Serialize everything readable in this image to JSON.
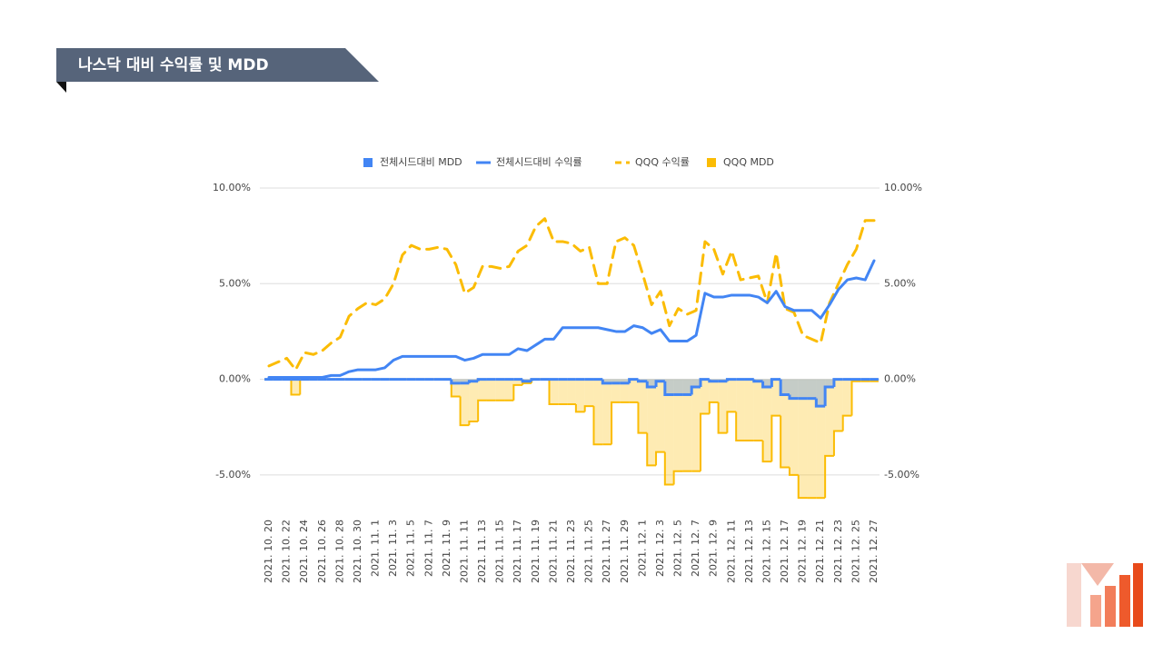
{
  "header": {
    "title": "나스닥 대비 수익률 및 MDD"
  },
  "chart_data": {
    "type": "line",
    "categories": [
      "2021. 10. 20",
      null,
      "2021. 10. 22",
      null,
      "2021. 10. 24",
      null,
      "2021. 10. 26",
      null,
      "2021. 10. 28",
      null,
      "2021. 10. 30",
      null,
      "2021. 11. 1",
      null,
      "2021. 11. 3",
      null,
      "2021. 11. 5",
      null,
      "2021. 11. 7",
      null,
      "2021. 11. 9",
      null,
      "2021. 11. 11",
      null,
      "2021. 11. 13",
      null,
      "2021. 11. 15",
      null,
      "2021. 11. 17",
      null,
      "2021. 11. 19",
      null,
      "2021. 11. 21",
      null,
      "2021. 11. 23",
      null,
      "2021. 11. 25",
      null,
      "2021. 11. 27",
      null,
      "2021. 11. 29",
      null,
      "2021. 12. 1",
      null,
      "2021. 12. 3",
      null,
      "2021. 12. 5",
      null,
      "2021. 12. 7",
      null,
      "2021. 12. 9",
      null,
      "2021. 12. 11",
      null,
      "2021. 12. 13",
      null,
      "2021. 12. 15",
      null,
      "2021. 12. 17",
      null,
      "2021. 12. 19",
      null,
      "2021. 12. 21",
      null,
      "2021. 12. 23",
      null,
      "2021. 12. 25",
      null,
      "2021. 12. 27"
    ],
    "series": [
      {
        "name": "전체시드대비 MDD",
        "color": "#4285f4",
        "type": "area",
        "values": [
          0,
          0,
          0,
          0,
          0,
          0,
          0,
          0,
          0,
          0,
          0,
          0,
          0,
          0,
          0,
          0,
          0,
          0,
          0,
          0,
          0,
          -0.2,
          -0.2,
          -0.1,
          0,
          0,
          0,
          0,
          0,
          -0.1,
          0,
          0,
          0,
          0,
          0,
          0,
          0,
          0,
          -0.2,
          -0.2,
          -0.2,
          0,
          -0.1,
          -0.4,
          -0.1,
          -0.8,
          -0.8,
          -0.8,
          -0.4,
          0,
          -0.1,
          -0.1,
          0,
          0,
          0,
          -0.1,
          -0.4,
          0,
          -0.8,
          -1.0,
          -1.0,
          -1.0,
          -1.4,
          -0.4,
          0,
          0,
          0,
          0,
          0
        ]
      },
      {
        "name": "전체시드대비 수익률",
        "color": "#4285f4",
        "type": "line",
        "values": [
          0.1,
          0.1,
          0.1,
          0.1,
          0.1,
          0.1,
          0.1,
          0.2,
          0.2,
          0.4,
          0.5,
          0.5,
          0.5,
          0.6,
          1.0,
          1.2,
          1.2,
          1.2,
          1.2,
          1.2,
          1.2,
          1.2,
          1.0,
          1.1,
          1.3,
          1.3,
          1.3,
          1.3,
          1.6,
          1.5,
          1.8,
          2.1,
          2.1,
          2.7,
          2.7,
          2.7,
          2.7,
          2.7,
          2.6,
          2.5,
          2.5,
          2.8,
          2.7,
          2.4,
          2.6,
          2.0,
          2.0,
          2.0,
          2.3,
          4.5,
          4.3,
          4.3,
          4.4,
          4.4,
          4.4,
          4.3,
          4.0,
          4.6,
          3.8,
          3.6,
          3.6,
          3.6,
          3.2,
          3.9,
          4.7,
          5.2,
          5.3,
          5.2,
          6.2
        ]
      },
      {
        "name": "QQQ 수익률",
        "color": "#fbbc04",
        "type": "line",
        "dashed": true,
        "values": [
          0.7,
          0.9,
          1.1,
          0.5,
          1.4,
          1.3,
          1.5,
          1.9,
          2.2,
          3.3,
          3.7,
          4.0,
          3.9,
          4.2,
          5.0,
          6.5,
          7.0,
          6.8,
          6.8,
          6.9,
          6.8,
          6.0,
          4.5,
          4.8,
          5.9,
          5.9,
          5.8,
          5.9,
          6.7,
          7.0,
          8.0,
          8.4,
          7.2,
          7.2,
          7.1,
          6.7,
          6.9,
          5.0,
          5.0,
          7.2,
          7.4,
          7.0,
          5.5,
          3.9,
          4.6,
          2.8,
          3.7,
          3.4,
          3.6,
          7.2,
          6.8,
          5.5,
          6.7,
          5.2,
          5.3,
          5.4,
          4.0,
          6.6,
          3.7,
          3.5,
          2.3,
          2.1,
          1.9,
          4.0,
          5.0,
          6.0,
          6.8,
          8.3,
          8.3
        ]
      },
      {
        "name": "QQQ MDD",
        "color": "#fbbc04",
        "type": "area",
        "values": [
          0,
          0,
          0,
          -0.8,
          0,
          0,
          0,
          0,
          0,
          0,
          0,
          0,
          0,
          0,
          0,
          0,
          0,
          0,
          0,
          0,
          0,
          -0.9,
          -2.4,
          -2.2,
          -1.1,
          -1.1,
          -1.1,
          -1.1,
          -0.3,
          -0.2,
          0,
          0,
          -1.3,
          -1.3,
          -1.3,
          -1.7,
          -1.4,
          -3.4,
          -3.4,
          -1.2,
          -1.2,
          -1.2,
          -2.8,
          -4.5,
          -3.8,
          -5.5,
          -4.8,
          -4.8,
          -4.8,
          -1.8,
          -1.2,
          -2.8,
          -1.7,
          -3.2,
          -3.2,
          -3.2,
          -4.3,
          -1.9,
          -4.6,
          -5.0,
          -6.2,
          -6.2,
          -6.2,
          -4.0,
          -2.7,
          -1.9,
          -0.1,
          -0.1,
          -0.1
        ]
      }
    ],
    "ylim": [
      -6.5,
      10
    ],
    "yticks": [
      {
        "value": -5,
        "label": "-5.00%"
      },
      {
        "value": 0,
        "label": "0.00%"
      },
      {
        "value": 5,
        "label": "5.00%"
      },
      {
        "value": 10,
        "label": "10.00%"
      }
    ],
    "y2lim": [
      -6.5,
      10
    ],
    "y2ticks": [
      {
        "value": -5,
        "label": "-5.00%"
      },
      {
        "value": 0,
        "label": "0.00%"
      },
      {
        "value": 5,
        "label": "5.00%"
      },
      {
        "value": 10,
        "label": "10.00%"
      }
    ],
    "grid": true,
    "legend": "top"
  }
}
